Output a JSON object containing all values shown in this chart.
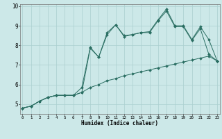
{
  "xlabel": "Humidex (Indice chaleur)",
  "x": [
    0,
    1,
    2,
    3,
    4,
    5,
    6,
    7,
    8,
    9,
    10,
    11,
    12,
    13,
    14,
    15,
    16,
    17,
    18,
    19,
    20,
    21,
    22,
    23
  ],
  "line1": [
    4.8,
    4.9,
    5.15,
    5.35,
    5.45,
    5.45,
    5.45,
    5.6,
    5.85,
    6.0,
    6.2,
    6.3,
    6.45,
    6.55,
    6.65,
    6.75,
    6.85,
    6.95,
    7.05,
    7.15,
    7.25,
    7.35,
    7.45,
    7.2
  ],
  "line2": [
    4.8,
    4.9,
    5.15,
    5.35,
    5.45,
    5.45,
    5.45,
    5.6,
    7.85,
    7.4,
    8.55,
    9.05,
    8.45,
    8.55,
    8.65,
    8.65,
    9.25,
    9.75,
    8.95,
    8.95,
    8.25,
    8.85,
    7.55,
    7.2
  ],
  "line3": [
    4.8,
    4.9,
    5.15,
    5.35,
    5.45,
    5.45,
    5.45,
    5.85,
    7.9,
    7.4,
    8.65,
    9.05,
    8.5,
    8.55,
    8.65,
    8.7,
    9.3,
    9.85,
    9.0,
    9.0,
    8.3,
    8.95,
    8.3,
    7.2
  ],
  "line_color": "#2a6e62",
  "bg_color": "#cce8e8",
  "grid_color": "#aacfcf",
  "ylim": [
    4.5,
    10.1
  ],
  "xlim": [
    -0.3,
    23.3
  ],
  "yticks": [
    5,
    6,
    7,
    8,
    9,
    10
  ],
  "xticks": [
    0,
    1,
    2,
    3,
    4,
    5,
    6,
    7,
    8,
    9,
    10,
    11,
    12,
    13,
    14,
    15,
    16,
    17,
    18,
    19,
    20,
    21,
    22,
    23
  ]
}
